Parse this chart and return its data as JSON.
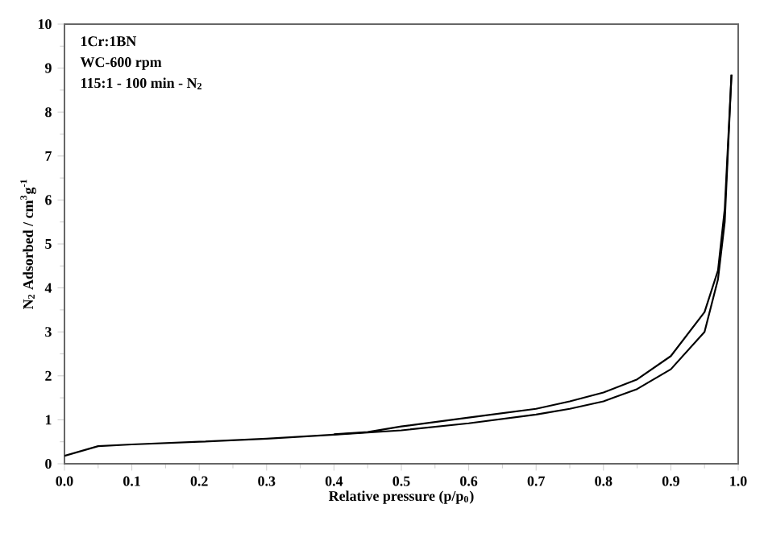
{
  "chart_data": {
    "type": "line",
    "xlabel": "Relative pressure (p/p$_{0}$)",
    "ylabel": "N$_{2}$ Adsorbed / cm$^{3}$g$^{-1}$",
    "annotations": [
      "1Cr:1BN",
      "WC-600 rpm",
      "115:1 - 100 min - N$_{2}$"
    ],
    "series": [
      {
        "color": "#000000",
        "x": [
          0,
          0.05,
          0.1,
          0.2,
          0.3,
          0.4,
          0.5,
          0.6,
          0.7,
          0.75,
          0.8,
          0.85,
          0.9,
          0.95,
          0.97,
          0.98,
          0.99
        ],
        "values": [
          0.18,
          0.4,
          0.44,
          0.5,
          0.57,
          0.66,
          0.76,
          0.92,
          1.12,
          1.25,
          1.42,
          1.7,
          2.15,
          3.0,
          4.2,
          5.5,
          8.85
        ]
      },
      {
        "color": "#000000",
        "x": [
          0.99,
          0.98,
          0.97,
          0.95,
          0.9,
          0.85,
          0.8,
          0.75,
          0.7,
          0.6,
          0.5,
          0.45,
          0.4
        ],
        "values": [
          8.85,
          5.8,
          4.4,
          3.45,
          2.45,
          1.92,
          1.62,
          1.42,
          1.25,
          1.05,
          0.85,
          0.72,
          0.67
        ]
      }
    ],
    "xlim": [
      0,
      1
    ],
    "ylim": [
      0,
      10
    ],
    "xticks": [
      {
        "value": 0,
        "label": "0.0"
      },
      {
        "value": 0.1,
        "label": "0.1"
      },
      {
        "value": 0.2,
        "label": "0.2"
      },
      {
        "value": 0.3,
        "label": "0.3"
      },
      {
        "value": 0.4,
        "label": "0.4"
      },
      {
        "value": 0.5,
        "label": "0.5"
      },
      {
        "value": 0.6,
        "label": "0.6"
      },
      {
        "value": 0.7,
        "label": "0.7"
      },
      {
        "value": 0.8,
        "label": "0.8"
      },
      {
        "value": 0.9,
        "label": "0.9"
      },
      {
        "value": 1,
        "label": "1.0"
      }
    ],
    "yticks": [
      0,
      1,
      2,
      3,
      4,
      5,
      6,
      7,
      8,
      9,
      10
    ],
    "marker": "none",
    "line_style": "solid"
  }
}
